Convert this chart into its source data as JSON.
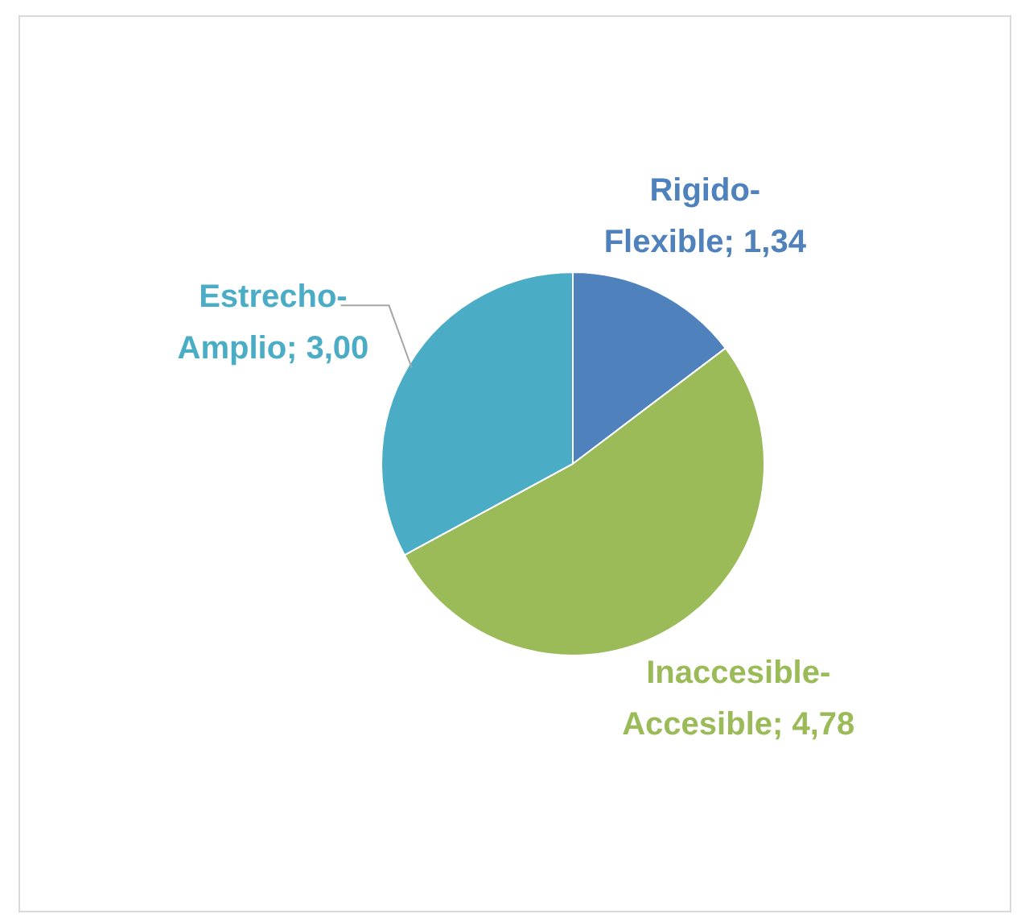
{
  "chart_data": {
    "type": "pie",
    "categories": [
      "Rigido-Flexible",
      "Inaccesible-Accesible",
      "Estrecho-Amplio"
    ],
    "values": [
      1.34,
      4.78,
      3.0
    ],
    "value_labels": [
      "1,34",
      "4,78",
      "3,00"
    ],
    "colors": [
      "#4f81bd",
      "#9bbb59",
      "#4bacc6"
    ]
  }
}
